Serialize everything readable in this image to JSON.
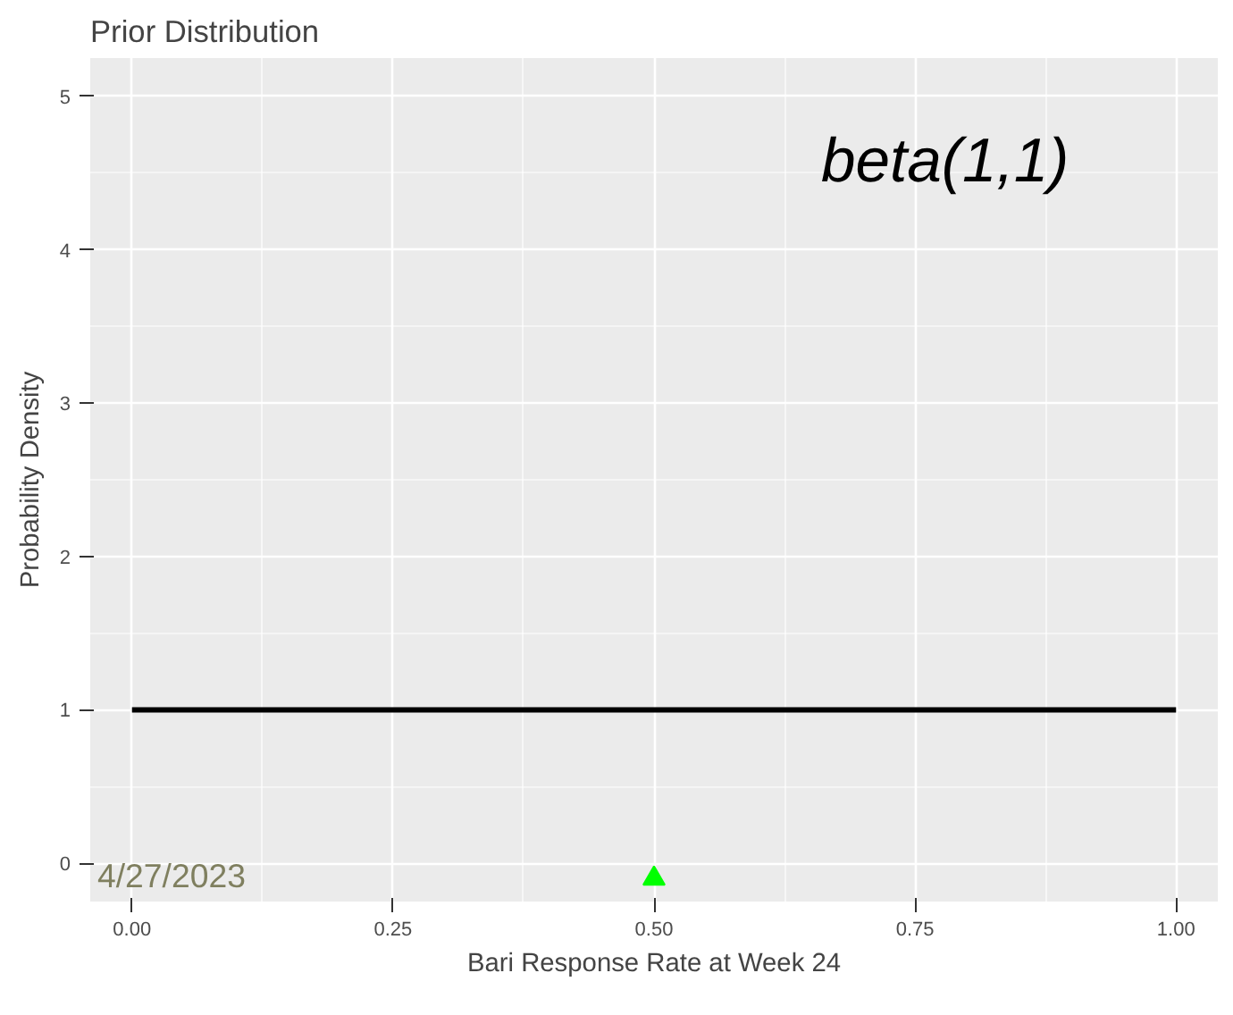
{
  "chart_data": {
    "type": "line",
    "title": "Prior Distribution",
    "xlabel": "Bari Response Rate at Week 24",
    "ylabel": "Probability Density",
    "xlim": [
      -0.04,
      1.04
    ],
    "ylim": [
      -0.25,
      5.25
    ],
    "xticks": [
      {
        "value": 0,
        "label": "0.00"
      },
      {
        "value": 0.25,
        "label": "0.25"
      },
      {
        "value": 0.5,
        "label": "0.50"
      },
      {
        "value": 0.75,
        "label": "0.75"
      },
      {
        "value": 1,
        "label": "1.00"
      }
    ],
    "yticks": [
      0,
      1,
      2,
      3,
      4,
      5
    ],
    "grid": true,
    "series": [
      {
        "color": "#000000",
        "x": [
          0,
          1
        ],
        "values": [
          1,
          1
        ]
      },
      {
        "type": "scatter",
        "color": "#00ff00",
        "marker": "triangle",
        "x": [
          0.5
        ],
        "values": [
          -0.1
        ]
      }
    ],
    "annotations": [
      "beta(1,1)",
      "4/27/2023"
    ]
  }
}
